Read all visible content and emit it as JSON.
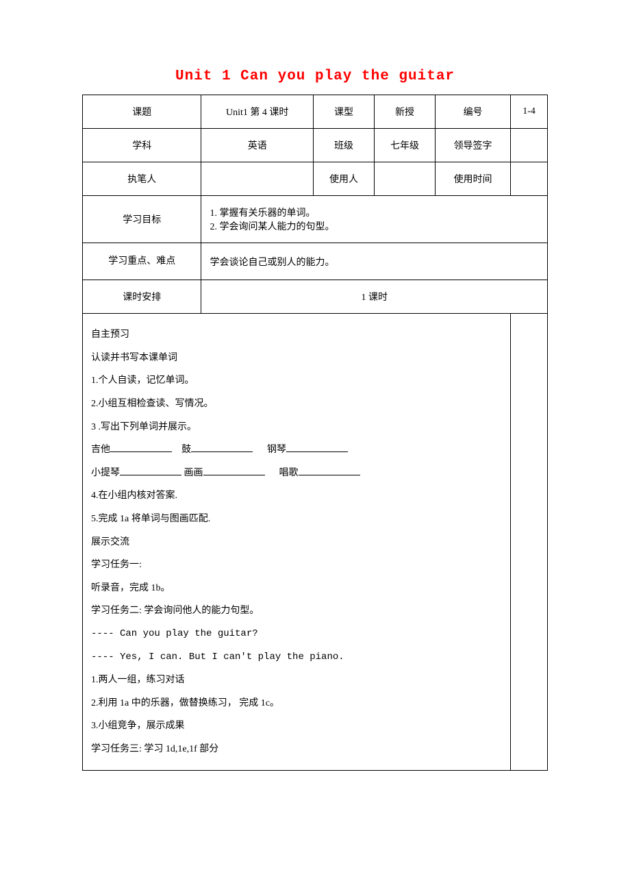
{
  "title": "Unit 1 Can you play the guitar",
  "header_rows": [
    {
      "label": "课题",
      "value": "Unit1 第 4 课时",
      "label2": "课型",
      "value2": "新授",
      "label3": "编号",
      "value3": "1-4"
    },
    {
      "label": "学科",
      "value": "英语",
      "label2": "班级",
      "value2": "七年级",
      "label3": "领导签字",
      "value3": ""
    },
    {
      "label": "执笔人",
      "value": "",
      "label2": "使用人",
      "value2": "",
      "label3": "使用时间",
      "value3": ""
    }
  ],
  "goal_label": "学习目标",
  "goal_line1": "1. 掌握有关乐器的单词。",
  "goal_line2": "2. 学会询问某人能力的句型。",
  "difficulty_label": "学习重点、难点",
  "difficulty_value": "学会谈论自己或别人的能力。",
  "schedule_label": "课时安排",
  "schedule_value": "1 课时",
  "content": {
    "l1": "自主预习",
    "l2": "认读并书写本课单词",
    "l3": "1.个人自读，记忆单词。",
    "l4": "2.小组互相检查读、写情况。",
    "l5": "3 .写出下列单词并展示。",
    "w1": "吉他",
    "w2": "鼓",
    "w3": "钢琴",
    "w4": "小提琴",
    "w5": "画画",
    "w6": "唱歌",
    "l6": "4.在小组内核对答案.",
    "l7": "5.完成 1a 将单词与图画匹配.",
    "l8": "展示交流",
    "l9": "学习任务一:",
    "l10": "听录音，完成 1b。",
    "l11": "学习任务二: 学会询问他人的能力句型。",
    "l12": "---- Can you play the guitar?",
    "l13": "---- Yes, I can. But I can't play the piano.",
    "l14": "1.两人一组，练习对话",
    "l15": "2.利用 1a 中的乐器，做替换练习， 完成 1c。",
    "l16": "3.小组竞争，展示成果",
    "l17": "学习任务三: 学习 1d,1e,1f 部分"
  }
}
